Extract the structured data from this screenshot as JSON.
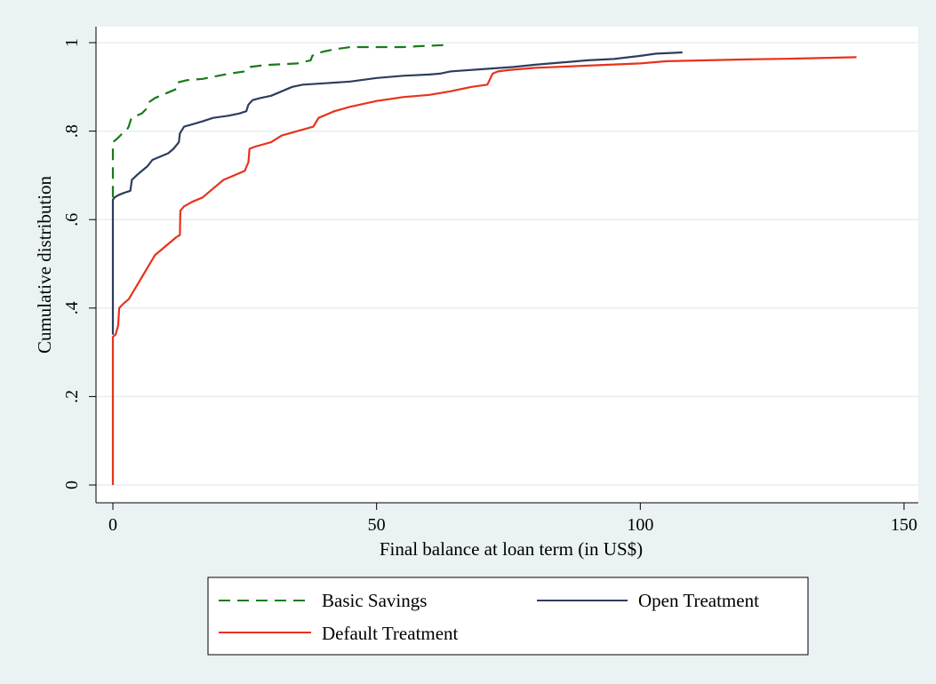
{
  "chart_data": {
    "type": "line",
    "title": "",
    "xlabel": "Final balance at loan term (in US$)",
    "ylabel": "Cumulative distribution",
    "xlim": [
      0,
      150
    ],
    "ylim": [
      0,
      1
    ],
    "x_ticks": [
      0,
      50,
      100,
      150
    ],
    "x_tick_labels": [
      "0",
      "50",
      "100",
      "150"
    ],
    "y_ticks": [
      0,
      0.2,
      0.4,
      0.6,
      0.8,
      1
    ],
    "y_tick_labels": [
      "0",
      ".2",
      ".4",
      ".6",
      ".8",
      "1"
    ],
    "grid": true,
    "legend_position": "bottom",
    "series": [
      {
        "name": "Basic Savings",
        "color": "#1a7a1a",
        "dash": "dashed",
        "points": [
          [
            0,
            0.65
          ],
          [
            0,
            0.775
          ],
          [
            0.5,
            0.78
          ],
          [
            1,
            0.785
          ],
          [
            1.8,
            0.795
          ],
          [
            2.5,
            0.8
          ],
          [
            3,
            0.81
          ],
          [
            3.5,
            0.83
          ],
          [
            4.5,
            0.835
          ],
          [
            5.5,
            0.84
          ],
          [
            6.3,
            0.85
          ],
          [
            6.8,
            0.865
          ],
          [
            8,
            0.875
          ],
          [
            10,
            0.885
          ],
          [
            12,
            0.895
          ],
          [
            12.3,
            0.91
          ],
          [
            14,
            0.915
          ],
          [
            17,
            0.918
          ],
          [
            20,
            0.925
          ],
          [
            22,
            0.93
          ],
          [
            25,
            0.935
          ],
          [
            26,
            0.945
          ],
          [
            28,
            0.948
          ],
          [
            30,
            0.95
          ],
          [
            35,
            0.953
          ],
          [
            37.5,
            0.96
          ],
          [
            37.8,
            0.97
          ],
          [
            38.5,
            0.975
          ],
          [
            40,
            0.98
          ],
          [
            42,
            0.985
          ],
          [
            45,
            0.99
          ],
          [
            50,
            0.99
          ],
          [
            55,
            0.99
          ],
          [
            58,
            0.992
          ],
          [
            64,
            0.995
          ]
        ]
      },
      {
        "name": "Open Treatment",
        "color": "#2d3e5c",
        "dash": "solid",
        "points": [
          [
            0,
            0.34
          ],
          [
            0,
            0.645
          ],
          [
            0.3,
            0.65
          ],
          [
            1,
            0.655
          ],
          [
            2,
            0.66
          ],
          [
            3.3,
            0.665
          ],
          [
            3.6,
            0.69
          ],
          [
            4.5,
            0.7
          ],
          [
            5.5,
            0.71
          ],
          [
            6.5,
            0.72
          ],
          [
            7.5,
            0.735
          ],
          [
            8.5,
            0.74
          ],
          [
            9.5,
            0.745
          ],
          [
            10.5,
            0.75
          ],
          [
            11.5,
            0.76
          ],
          [
            12.5,
            0.775
          ],
          [
            12.7,
            0.795
          ],
          [
            13.5,
            0.81
          ],
          [
            15,
            0.815
          ],
          [
            17,
            0.822
          ],
          [
            19,
            0.83
          ],
          [
            22,
            0.835
          ],
          [
            24,
            0.84
          ],
          [
            25.3,
            0.845
          ],
          [
            25.7,
            0.86
          ],
          [
            26.5,
            0.87
          ],
          [
            28,
            0.875
          ],
          [
            30,
            0.88
          ],
          [
            32,
            0.89
          ],
          [
            34,
            0.9
          ],
          [
            36,
            0.905
          ],
          [
            40,
            0.908
          ],
          [
            45,
            0.912
          ],
          [
            50,
            0.92
          ],
          [
            55,
            0.925
          ],
          [
            60,
            0.928
          ],
          [
            62,
            0.93
          ],
          [
            64,
            0.935
          ],
          [
            70,
            0.94
          ],
          [
            76,
            0.945
          ],
          [
            80,
            0.95
          ],
          [
            85,
            0.955
          ],
          [
            90,
            0.96
          ],
          [
            95,
            0.963
          ],
          [
            100,
            0.97
          ],
          [
            103,
            0.975
          ],
          [
            108,
            0.978
          ]
        ]
      },
      {
        "name": "Default Treatment",
        "color": "#e8321c",
        "dash": "solid",
        "points": [
          [
            0,
            0.0
          ],
          [
            0,
            0.335
          ],
          [
            0.5,
            0.34
          ],
          [
            1,
            0.36
          ],
          [
            1.2,
            0.4
          ],
          [
            2,
            0.41
          ],
          [
            3,
            0.42
          ],
          [
            4,
            0.44
          ],
          [
            5,
            0.46
          ],
          [
            6,
            0.48
          ],
          [
            7,
            0.5
          ],
          [
            8,
            0.52
          ],
          [
            9,
            0.53
          ],
          [
            10,
            0.54
          ],
          [
            11,
            0.55
          ],
          [
            12,
            0.56
          ],
          [
            12.7,
            0.565
          ],
          [
            12.8,
            0.62
          ],
          [
            13.5,
            0.63
          ],
          [
            15,
            0.64
          ],
          [
            17,
            0.65
          ],
          [
            19,
            0.67
          ],
          [
            21,
            0.69
          ],
          [
            23,
            0.7
          ],
          [
            25,
            0.71
          ],
          [
            25.7,
            0.73
          ],
          [
            25.9,
            0.76
          ],
          [
            27,
            0.765
          ],
          [
            30,
            0.775
          ],
          [
            32,
            0.79
          ],
          [
            35,
            0.8
          ],
          [
            38,
            0.81
          ],
          [
            39,
            0.83
          ],
          [
            42,
            0.845
          ],
          [
            45,
            0.855
          ],
          [
            50,
            0.868
          ],
          [
            55,
            0.877
          ],
          [
            60,
            0.882
          ],
          [
            64,
            0.89
          ],
          [
            68,
            0.9
          ],
          [
            71,
            0.905
          ],
          [
            72,
            0.93
          ],
          [
            73,
            0.935
          ],
          [
            75,
            0.938
          ],
          [
            80,
            0.943
          ],
          [
            90,
            0.948
          ],
          [
            100,
            0.953
          ],
          [
            105,
            0.958
          ],
          [
            120,
            0.962
          ],
          [
            130,
            0.964
          ],
          [
            141,
            0.967
          ]
        ]
      }
    ]
  }
}
